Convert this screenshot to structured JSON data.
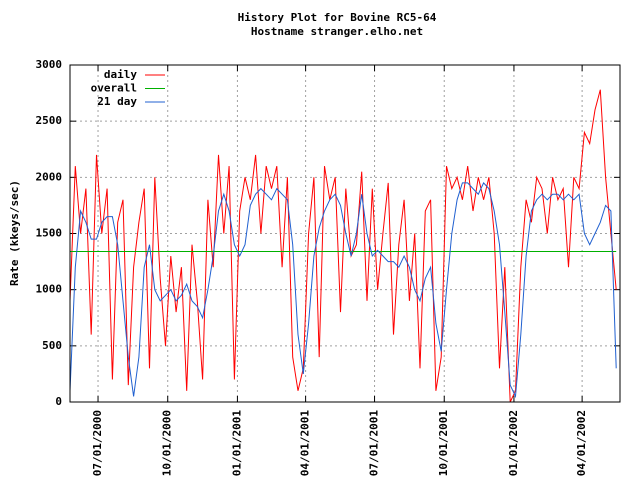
{
  "chart_data": {
    "type": "line",
    "title": "History Plot for Bovine RC5-64",
    "subtitle": "Hostname stranger.elho.net",
    "y_label": "Rate (kkeys/sec)",
    "grid": true,
    "legend": "top-left",
    "xlim": [
      "2000-05-25",
      "2002-05-21"
    ],
    "xticks": [
      {
        "value": "2000-07-01",
        "label": "07/01/2000"
      },
      {
        "value": "2000-10-01",
        "label": "10/01/2000"
      },
      {
        "value": "2001-01-01",
        "label": "01/01/2001"
      },
      {
        "value": "2001-04-01",
        "label": "04/01/2001"
      },
      {
        "value": "2001-07-01",
        "label": "07/01/2001"
      },
      {
        "value": "2001-10-01",
        "label": "10/01/2001"
      },
      {
        "value": "2002-01-01",
        "label": "01/01/2002"
      },
      {
        "value": "2002-04-01",
        "label": "04/01/2002"
      }
    ],
    "ylim": [
      0,
      3000
    ],
    "yticks": [
      0,
      500,
      1000,
      1500,
      2000,
      2500,
      3000
    ],
    "x": [
      "2000-05-25",
      "2000-06-01",
      "2000-06-08",
      "2000-06-15",
      "2000-06-22",
      "2000-06-29",
      "2000-07-06",
      "2000-07-13",
      "2000-07-20",
      "2000-07-27",
      "2000-08-03",
      "2000-08-10",
      "2000-08-17",
      "2000-08-24",
      "2000-08-31",
      "2000-09-07",
      "2000-09-14",
      "2000-09-21",
      "2000-09-28",
      "2000-10-05",
      "2000-10-12",
      "2000-10-19",
      "2000-10-26",
      "2000-11-02",
      "2000-11-09",
      "2000-11-16",
      "2000-11-23",
      "2000-11-30",
      "2000-12-07",
      "2000-12-14",
      "2000-12-21",
      "2000-12-28",
      "2001-01-04",
      "2001-01-11",
      "2001-01-18",
      "2001-01-25",
      "2001-02-01",
      "2001-02-08",
      "2001-02-15",
      "2001-02-22",
      "2001-03-01",
      "2001-03-08",
      "2001-03-15",
      "2001-03-22",
      "2001-03-29",
      "2001-04-05",
      "2001-04-12",
      "2001-04-19",
      "2001-04-26",
      "2001-05-03",
      "2001-05-10",
      "2001-05-17",
      "2001-05-24",
      "2001-05-31",
      "2001-06-07",
      "2001-06-14",
      "2001-06-21",
      "2001-06-28",
      "2001-07-05",
      "2001-07-12",
      "2001-07-19",
      "2001-07-26",
      "2001-08-02",
      "2001-08-09",
      "2001-08-16",
      "2001-08-23",
      "2001-08-30",
      "2001-09-06",
      "2001-09-13",
      "2001-09-20",
      "2001-09-27",
      "2001-10-04",
      "2001-10-11",
      "2001-10-18",
      "2001-10-25",
      "2001-11-01",
      "2001-11-08",
      "2001-11-15",
      "2001-11-22",
      "2001-11-29",
      "2001-12-06",
      "2001-12-13",
      "2001-12-20",
      "2001-12-27",
      "2002-01-03",
      "2002-01-10",
      "2002-01-17",
      "2002-01-24",
      "2002-01-31",
      "2002-02-07",
      "2002-02-14",
      "2002-02-21",
      "2002-02-28",
      "2002-03-07",
      "2002-03-14",
      "2002-03-21",
      "2002-03-28",
      "2002-04-04",
      "2002-04-11",
      "2002-04-18",
      "2002-04-25",
      "2002-05-02",
      "2002-05-09",
      "2002-05-16"
    ],
    "series": [
      {
        "name": "daily",
        "color": "#ff0000",
        "values": [
          900,
          2100,
          1500,
          1900,
          600,
          2200,
          1500,
          1900,
          200,
          1600,
          1800,
          150,
          1200,
          1600,
          1900,
          300,
          2000,
          1100,
          500,
          1300,
          800,
          1200,
          100,
          1400,
          900,
          200,
          1800,
          1200,
          2200,
          1500,
          2100,
          200,
          1700,
          2000,
          1800,
          2200,
          1500,
          2100,
          1900,
          2100,
          1200,
          2000,
          400,
          100,
          300,
          1500,
          2000,
          400,
          2100,
          1800,
          2000,
          800,
          1900,
          1300,
          1400,
          2050,
          900,
          1900,
          1000,
          1500,
          1950,
          600,
          1400,
          1800,
          900,
          1500,
          300,
          1700,
          1800,
          100,
          400,
          2100,
          1900,
          2000,
          1800,
          2100,
          1700,
          2000,
          1800,
          2000,
          1500,
          300,
          1200,
          0,
          100,
          1200,
          1800,
          1600,
          2000,
          1900,
          1500,
          2000,
          1800,
          1900,
          1200,
          2000,
          1900,
          2400,
          2300,
          2600,
          2780,
          2000,
          1500,
          1000
        ]
      },
      {
        "name": "overall",
        "color": "#00b000",
        "values": [
          1340,
          1340,
          1340,
          1340,
          1340,
          1340,
          1340,
          1340,
          1340,
          1340,
          1340,
          1340,
          1340,
          1340,
          1340,
          1340,
          1340,
          1340,
          1340,
          1340,
          1340,
          1340,
          1340,
          1340,
          1340,
          1340,
          1340,
          1340,
          1340,
          1340,
          1340,
          1340,
          1340,
          1340,
          1340,
          1340,
          1340,
          1340,
          1340,
          1340,
          1340,
          1340,
          1340,
          1340,
          1340,
          1340,
          1340,
          1340,
          1340,
          1340,
          1340,
          1340,
          1340,
          1340,
          1340,
          1340,
          1340,
          1340,
          1340,
          1340,
          1340,
          1340,
          1340,
          1340,
          1340,
          1340,
          1340,
          1340,
          1340,
          1340,
          1340,
          1340,
          1340,
          1340,
          1340,
          1340,
          1340,
          1340,
          1340,
          1340,
          1340,
          1340,
          1340,
          1340,
          1340,
          1340,
          1340,
          1340,
          1340,
          1340,
          1340,
          1340,
          1340,
          1340,
          1340,
          1340,
          1340,
          1340,
          1340,
          1340,
          1340,
          1340,
          1340,
          1340
        ]
      },
      {
        "name": "21 day",
        "color": "#2060d0",
        "values": [
          100,
          1200,
          1700,
          1600,
          1450,
          1450,
          1600,
          1650,
          1650,
          1400,
          900,
          400,
          50,
          400,
          1200,
          1400,
          1000,
          900,
          950,
          1000,
          900,
          950,
          1050,
          900,
          850,
          750,
          1000,
          1300,
          1700,
          1850,
          1700,
          1400,
          1300,
          1400,
          1750,
          1850,
          1900,
          1850,
          1800,
          1900,
          1850,
          1800,
          1400,
          600,
          250,
          700,
          1300,
          1550,
          1700,
          1800,
          1850,
          1750,
          1500,
          1300,
          1500,
          1850,
          1500,
          1300,
          1350,
          1300,
          1250,
          1250,
          1200,
          1300,
          1200,
          1000,
          900,
          1100,
          1200,
          700,
          450,
          1000,
          1500,
          1800,
          1950,
          1950,
          1900,
          1850,
          1950,
          1900,
          1700,
          1400,
          800,
          150,
          50,
          600,
          1300,
          1700,
          1800,
          1850,
          1800,
          1850,
          1850,
          1800,
          1850,
          1800,
          1850,
          1500,
          1400,
          1500,
          1600,
          1750,
          1700,
          300
        ]
      }
    ]
  }
}
